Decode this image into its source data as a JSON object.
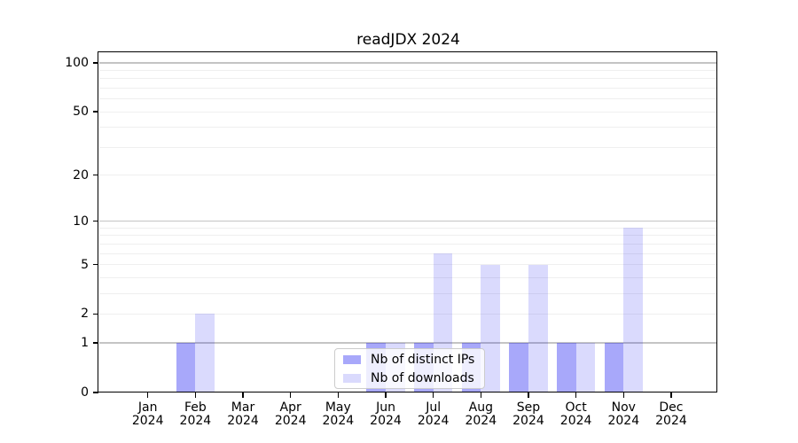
{
  "title": "readJDX 2024",
  "chart_data": {
    "type": "bar",
    "title": "readJDX 2024",
    "categories": [
      "Jan 2024",
      "Feb 2024",
      "Mar 2024",
      "Apr 2024",
      "May 2024",
      "Jun 2024",
      "Jul 2024",
      "Aug 2024",
      "Sep 2024",
      "Oct 2024",
      "Nov 2024",
      "Dec 2024"
    ],
    "series": [
      {
        "name": "Nb of distinct IPs",
        "color": "rgba(0,0,240,0.34)",
        "values": [
          0,
          1,
          0,
          0,
          0,
          1,
          1,
          1,
          1,
          1,
          1,
          0
        ]
      },
      {
        "name": "Nb of downloads",
        "color": "rgba(0,0,240,0.145)",
        "values": [
          0,
          2,
          0,
          0,
          0,
          1,
          6,
          5,
          5,
          1,
          9,
          0
        ]
      }
    ],
    "xlabel": "",
    "ylabel": "",
    "yscale": "log1p",
    "ylim": [
      0,
      116
    ],
    "yticks": [
      0,
      1,
      2,
      5,
      10,
      20,
      50,
      100
    ],
    "major_gridlines": [
      1,
      10,
      100
    ],
    "minor_gridlines": [
      2,
      3,
      4,
      5,
      6,
      7,
      8,
      9,
      20,
      30,
      40,
      50,
      60,
      70,
      80,
      90
    ],
    "grid": true,
    "legend_position": "lower center"
  },
  "colors": {
    "grid_major": "#c4c4c4",
    "grid_minor": "#efefef",
    "axis": "#000000",
    "background": "#ffffff"
  }
}
